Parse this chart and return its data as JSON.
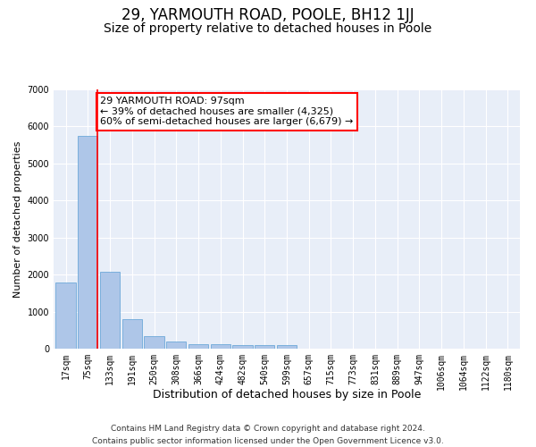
{
  "title": "29, YARMOUTH ROAD, POOLE, BH12 1JJ",
  "subtitle": "Size of property relative to detached houses in Poole",
  "xlabel": "Distribution of detached houses by size in Poole",
  "ylabel": "Number of detached properties",
  "categories": [
    "17sqm",
    "75sqm",
    "133sqm",
    "191sqm",
    "250sqm",
    "308sqm",
    "366sqm",
    "424sqm",
    "482sqm",
    "540sqm",
    "599sqm",
    "657sqm",
    "715sqm",
    "773sqm",
    "831sqm",
    "889sqm",
    "947sqm",
    "1006sqm",
    "1064sqm",
    "1122sqm",
    "1180sqm"
  ],
  "values": [
    1780,
    5750,
    2080,
    800,
    340,
    200,
    120,
    110,
    95,
    90,
    90,
    0,
    0,
    0,
    0,
    0,
    0,
    0,
    0,
    0,
    0
  ],
  "bar_color": "#aec6e8",
  "bar_edge_color": "#5a9fd4",
  "vline_color": "red",
  "annotation_text": "29 YARMOUTH ROAD: 97sqm\n← 39% of detached houses are smaller (4,325)\n60% of semi-detached houses are larger (6,679) →",
  "annotation_box_color": "white",
  "annotation_box_edge_color": "red",
  "ylim": [
    0,
    7000
  ],
  "yticks": [
    0,
    1000,
    2000,
    3000,
    4000,
    5000,
    6000,
    7000
  ],
  "background_color": "#e8eef8",
  "footer_line1": "Contains HM Land Registry data © Crown copyright and database right 2024.",
  "footer_line2": "Contains public sector information licensed under the Open Government Licence v3.0.",
  "title_fontsize": 12,
  "subtitle_fontsize": 10,
  "xlabel_fontsize": 9,
  "ylabel_fontsize": 8,
  "tick_fontsize": 7,
  "footer_fontsize": 6.5,
  "annotation_fontsize": 8
}
